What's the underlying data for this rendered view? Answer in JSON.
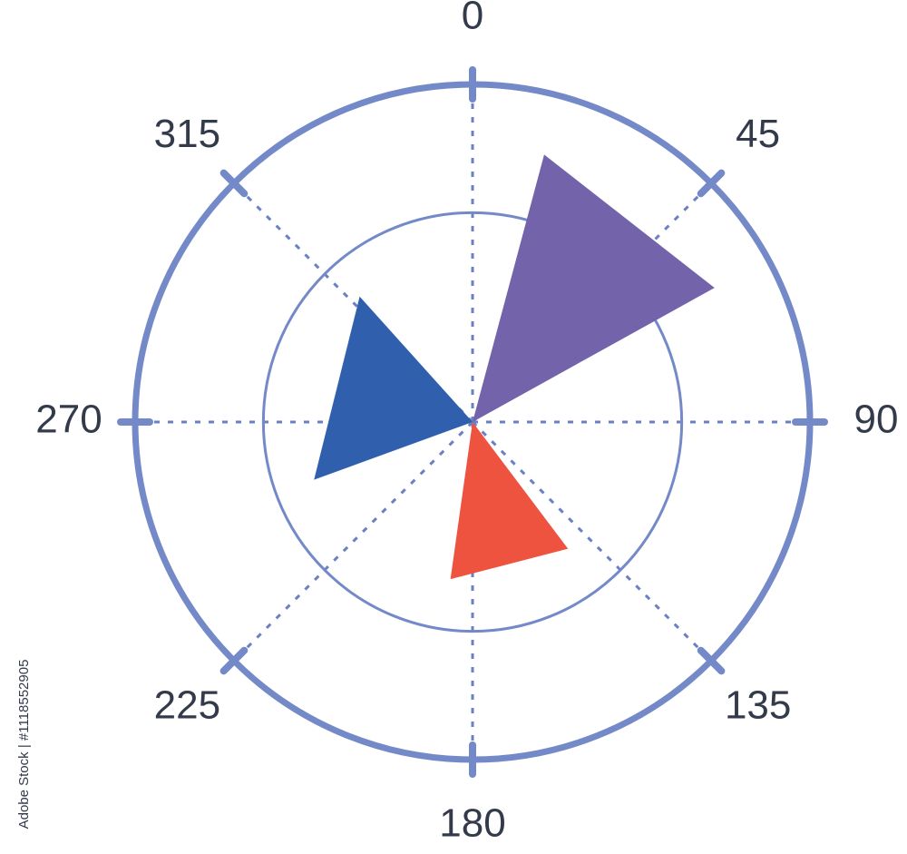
{
  "chart_data": {
    "type": "polar",
    "angle_ticks": [
      0,
      45,
      90,
      135,
      180,
      225,
      270,
      315
    ],
    "rlim": [
      0,
      100
    ],
    "rgrid": [
      62
    ],
    "wedges": [
      {
        "start": 15,
        "end": 61,
        "value": 82,
        "color": "#7263ab"
      },
      {
        "start": 143,
        "end": 188,
        "value": 47,
        "color": "#ee5340"
      },
      {
        "start": 250,
        "end": 318,
        "value": 50,
        "color": "#3060ad"
      }
    ]
  },
  "watermark": "Adobe Stock | #1118552905"
}
